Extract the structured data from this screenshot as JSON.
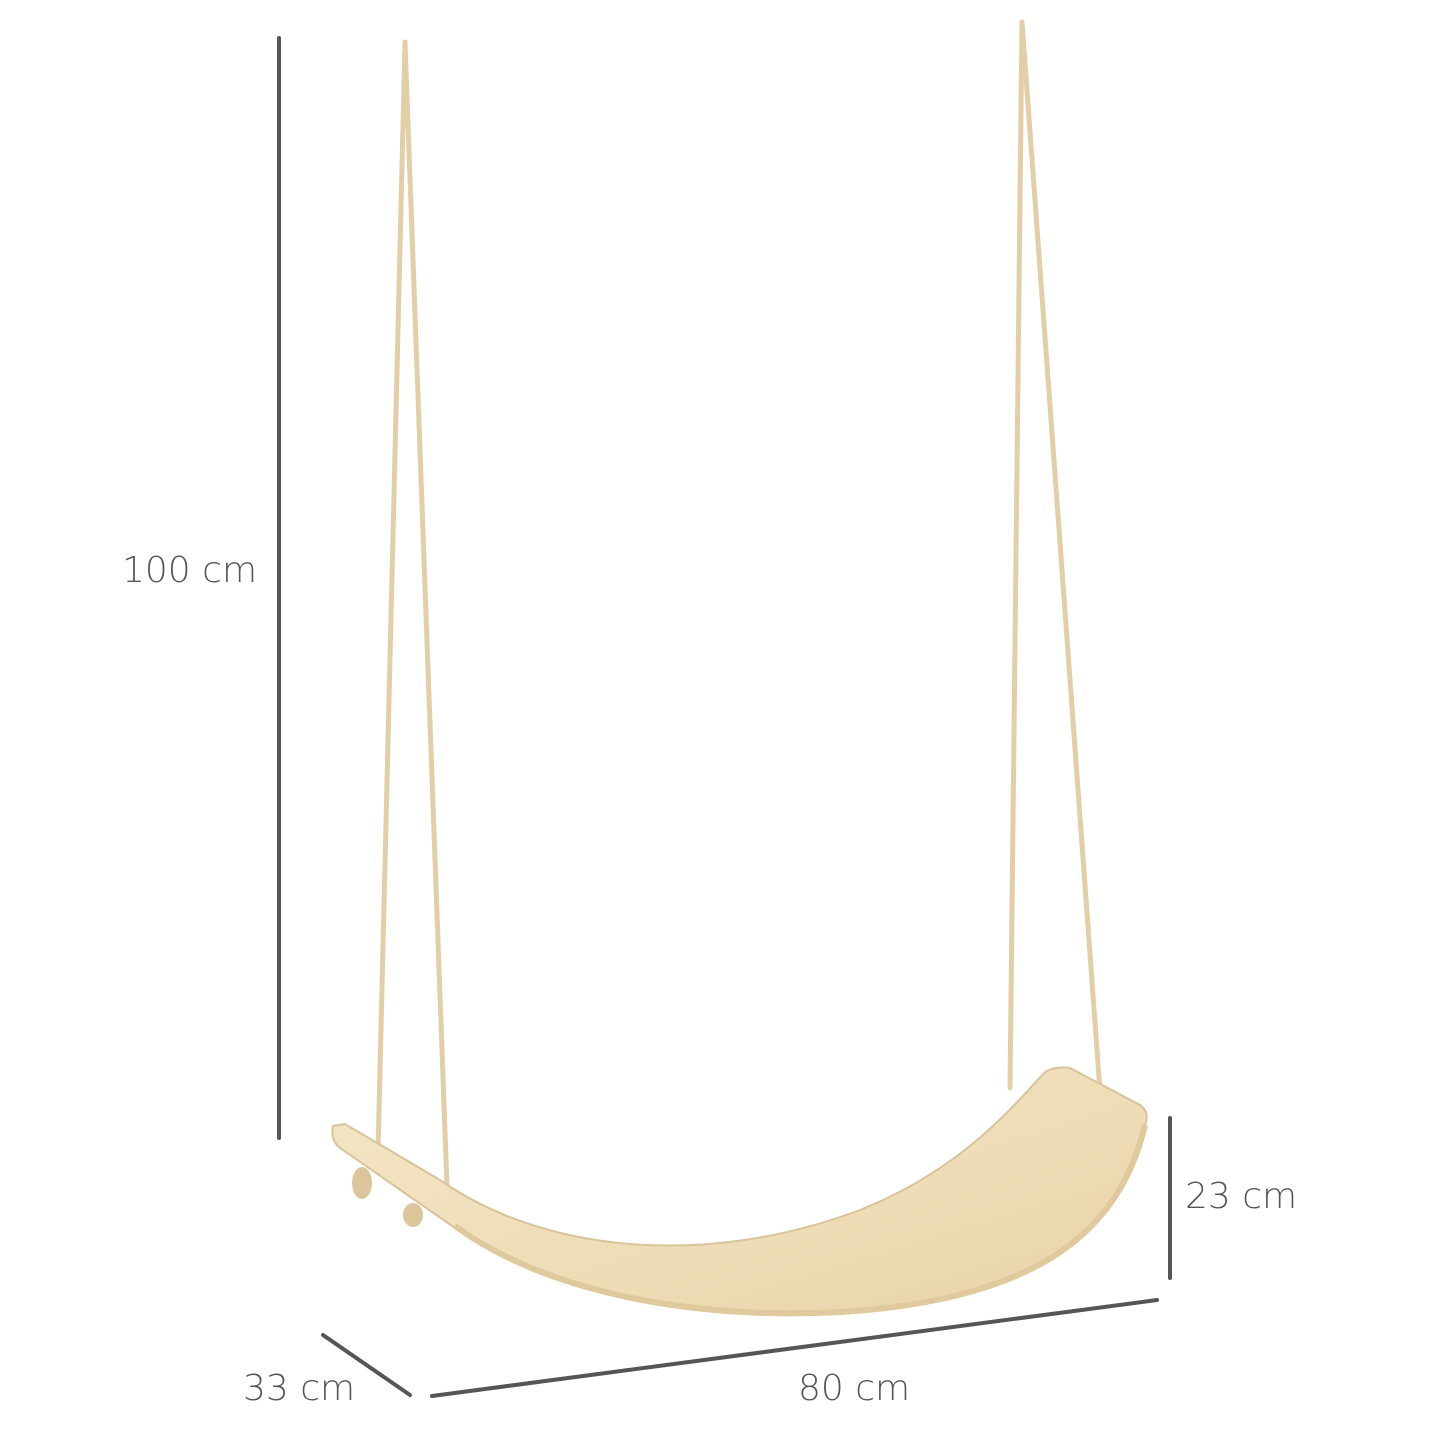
{
  "dimensions": {
    "height": "100 cm",
    "seat_height": "23 cm",
    "depth": "33 cm",
    "width": "80 cm"
  },
  "colors": {
    "dimension_line": "#555555",
    "wood": "#f0dfbc",
    "rope": "#e6d3ae"
  }
}
